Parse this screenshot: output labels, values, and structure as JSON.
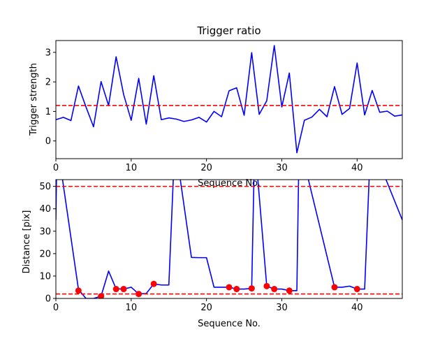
{
  "chart_data": [
    {
      "type": "line",
      "title": "Trigger ratio",
      "xlabel": "Sequence No.",
      "ylabel": "Trigger strength",
      "xlim": [
        0,
        46
      ],
      "ylim": [
        -0.6,
        3.4
      ],
      "xticks": [
        0,
        10,
        20,
        30,
        40
      ],
      "yticks": [
        0,
        1,
        2,
        3
      ],
      "grid": false,
      "series": [
        {
          "color": "#0000ff",
          "x": [
            0,
            1,
            2,
            3,
            4,
            5,
            6,
            7,
            8,
            9,
            10,
            11,
            12,
            13,
            14,
            15,
            16,
            17,
            18,
            19,
            20,
            21,
            22,
            23,
            24,
            25,
            26,
            27,
            28,
            29,
            30,
            31,
            32,
            33,
            34,
            35,
            36,
            37,
            38,
            39,
            40,
            41,
            42,
            43,
            44,
            45,
            46
          ],
          "values": [
            0.72,
            0.8,
            0.69,
            1.86,
            1.15,
            0.48,
            2.01,
            1.2,
            2.85,
            1.57,
            0.7,
            2.12,
            0.57,
            2.21,
            0.72,
            0.78,
            0.74,
            0.66,
            0.71,
            0.8,
            0.64,
            1.0,
            0.82,
            1.7,
            1.8,
            0.87,
            2.99,
            0.9,
            1.36,
            3.23,
            1.15,
            2.3,
            -0.4,
            0.7,
            0.81,
            1.07,
            0.82,
            1.84,
            0.9,
            1.1,
            2.64,
            0.88,
            1.71,
            0.97,
            1.01,
            0.84,
            0.88
          ]
        }
      ],
      "threshold": {
        "value": 1.2,
        "color": "#ff0000",
        "style": "dashed"
      }
    },
    {
      "type": "line",
      "title": "",
      "xlabel": "Sequence No.",
      "ylabel": "Distance [pix]",
      "xlim": [
        0,
        46
      ],
      "ylim": [
        0,
        53
      ],
      "xticks": [
        0,
        10,
        20,
        30,
        40
      ],
      "yticks": [
        0,
        10,
        20,
        30,
        40,
        50
      ],
      "grid": false,
      "series": [
        {
          "color": "#0000ff",
          "x": [
            0,
            0.15,
            3,
            4,
            5,
            6,
            7,
            8,
            9,
            10,
            11,
            12,
            13,
            14,
            15,
            15.8,
            18,
            19,
            20,
            21,
            22,
            23,
            24,
            25,
            26,
            26.4,
            28,
            29,
            30,
            31,
            32,
            32.3,
            37,
            38,
            39,
            40,
            41,
            41.8,
            46
          ],
          "values": [
            35,
            70,
            4,
            0,
            0,
            1,
            12.2,
            4.3,
            4.2,
            5,
            2,
            2.2,
            6.5,
            6,
            6,
            70,
            18.3,
            18.2,
            18.2,
            5,
            5,
            5,
            4.2,
            4.2,
            4.5,
            70,
            5.5,
            4.2,
            4.2,
            3.5,
            3.5,
            70,
            5,
            5,
            5.5,
            4.2,
            4.2,
            70,
            35
          ]
        },
        {
          "color": "#ff0000",
          "marker": "circle",
          "x": [
            3,
            6,
            8,
            9,
            11,
            13,
            23,
            24,
            26,
            28,
            29,
            31,
            37,
            40
          ],
          "values": [
            3.5,
            1.0,
            4.2,
            4.2,
            2.0,
            6.5,
            5.0,
            4.2,
            4.5,
            5.5,
            4.2,
            3.5,
            5.0,
            4.2
          ]
        }
      ],
      "thresholds": [
        {
          "value": 50,
          "color": "#ff0000",
          "style": "dashed"
        },
        {
          "value": 2,
          "color": "#ff0000",
          "style": "dashed"
        }
      ]
    }
  ]
}
